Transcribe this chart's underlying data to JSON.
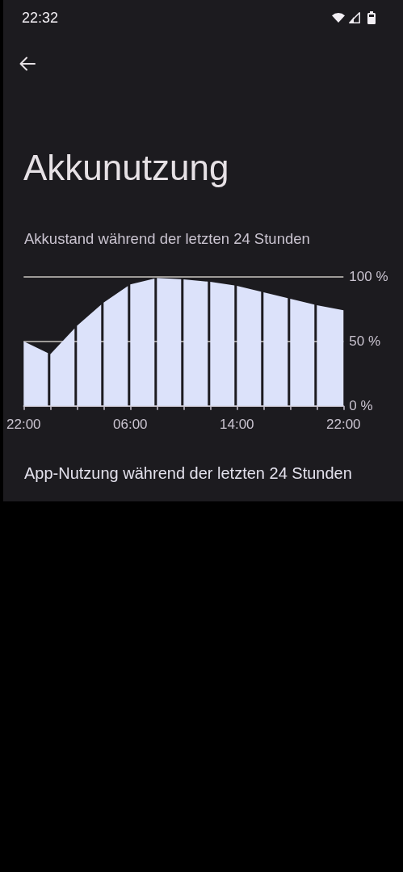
{
  "chart_data": {
    "type": "area",
    "title": "Akkunutzung",
    "subtitle": "Akkustand während der letzten 24 Stunden",
    "annotations": [
      "22:32",
      "App-Nutzung während der letzten 24 Stunden"
    ],
    "categories": [
      "22:00",
      null,
      null,
      null,
      "06:00",
      null,
      null,
      null,
      "14:00",
      null,
      null,
      null,
      "22:00"
    ],
    "values": [
      50,
      40,
      62,
      80,
      94,
      99,
      98,
      96,
      93,
      88,
      83,
      78,
      74
    ],
    "color": "#dce2fa",
    "ylim": [
      0,
      100
    ],
    "yticks": [
      {
        "value": 0,
        "label": "0 %"
      },
      {
        "value": 50,
        "label": "50 %"
      },
      {
        "value": 100,
        "label": "100 %"
      }
    ],
    "grid": "y"
  }
}
